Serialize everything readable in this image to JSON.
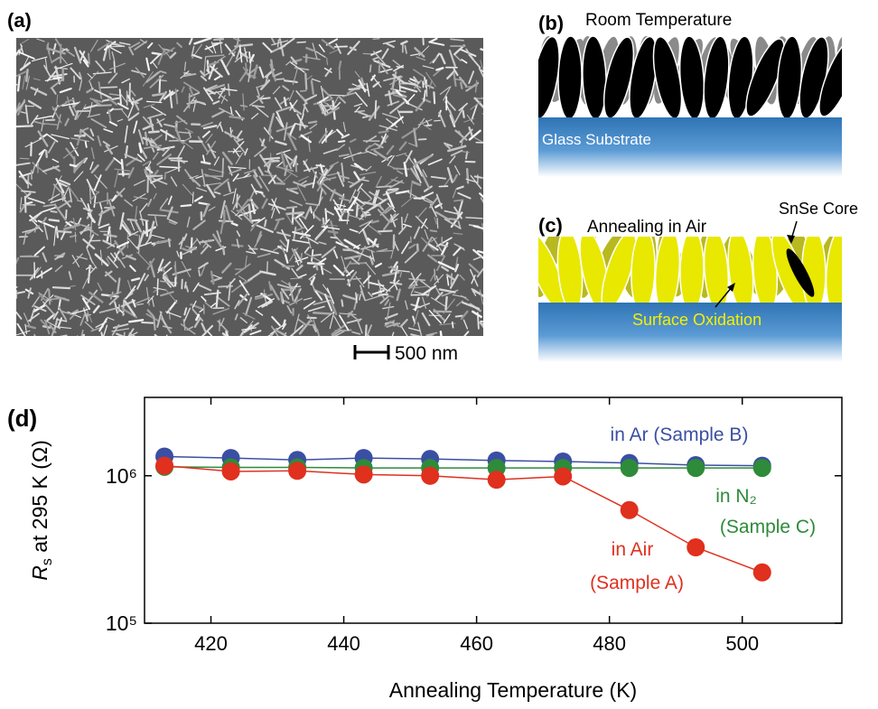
{
  "panels": {
    "a": {
      "label": "(a)",
      "scale_bar": "500 nm"
    },
    "b": {
      "label": "(b)",
      "title": "Room Temperature",
      "substrate": "Glass Substrate"
    },
    "c": {
      "label": "(c)",
      "title": "Annealing in Air",
      "core": "SnSe Core",
      "oxidation": "Surface Oxidation"
    },
    "d": {
      "label": "(d)"
    }
  },
  "chart_data": {
    "type": "line",
    "xlabel": "Annealing Temperature (K)",
    "ylabel_symbol": "R",
    "ylabel_sub": "s",
    "ylabel_rest": " at 295 K (Ω)",
    "x": [
      413,
      423,
      433,
      443,
      453,
      463,
      473,
      483,
      493,
      503
    ],
    "series": [
      {
        "name": "in Ar (Sample B)",
        "color": "#3a4fa3",
        "values": [
          1350000,
          1320000,
          1280000,
          1320000,
          1300000,
          1270000,
          1250000,
          1220000,
          1180000,
          1170000
        ]
      },
      {
        "name": "in N₂",
        "color": "#2e8b3a",
        "values": [
          1150000,
          1140000,
          1140000,
          1130000,
          1130000,
          1130000,
          1130000,
          1130000,
          1130000,
          1130000
        ]
      },
      {
        "name": "in Air",
        "color": "#e0301e",
        "values": [
          1170000,
          1070000,
          1080000,
          1020000,
          1000000,
          940000,
          990000,
          585000,
          327000,
          221000
        ]
      }
    ],
    "annotations": [
      "(Sample C)",
      "(Sample A)"
    ],
    "xlim": [
      410,
      515
    ],
    "ylim": [
      100000,
      3400000
    ],
    "yscale": "log",
    "xticks": [
      420,
      440,
      460,
      480,
      500
    ],
    "yticks": [
      {
        "value": 100000,
        "label": "10⁵"
      },
      {
        "value": 1000000,
        "label": "10⁶"
      }
    ]
  }
}
